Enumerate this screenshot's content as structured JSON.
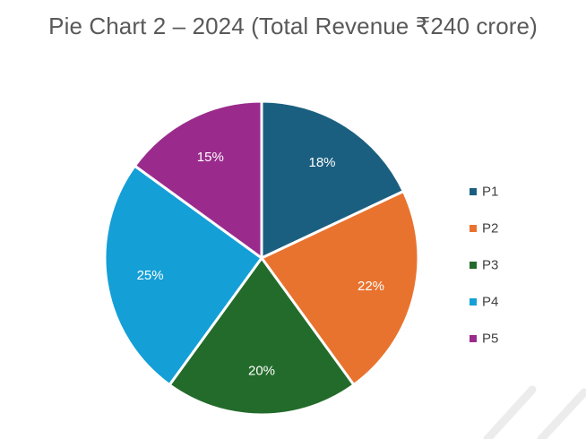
{
  "chart_data": {
    "type": "pie",
    "title": "Pie Chart 2 – 2024 (Total Revenue ₹240 crore)",
    "categories": [
      "P1",
      "P2",
      "P3",
      "P4",
      "P5"
    ],
    "values": [
      18,
      22,
      20,
      25,
      15
    ],
    "data_labels": [
      "18%",
      "22%",
      "20%",
      "25%",
      "15%"
    ],
    "colors": [
      "#1b5f80",
      "#e8732f",
      "#236b2a",
      "#149fd6",
      "#9a2b8c"
    ],
    "legend_position": "right",
    "start_angle": "12 o'clock",
    "direction": "clockwise"
  }
}
